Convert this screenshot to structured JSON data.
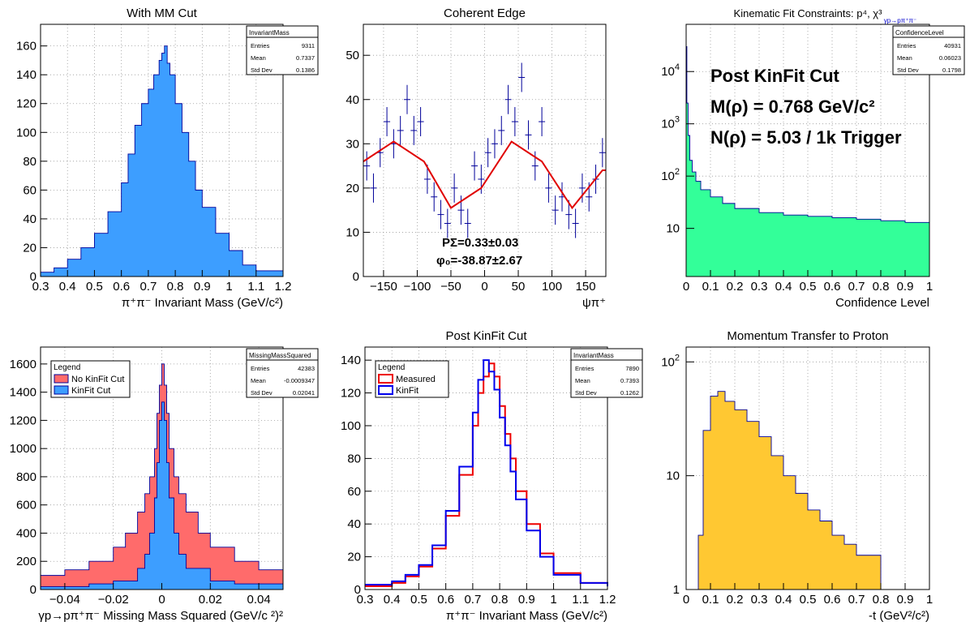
{
  "canvas": {
    "background": "#ffffff"
  },
  "colors": {
    "blue_fill": "#3d9eff",
    "red_fill": "#ff6b6b",
    "green_fill": "#33ff99",
    "yellow_fill": "#ffc832",
    "line_dark": "#000099",
    "fit_red": "#e00000",
    "kin_blue": "#0000ee",
    "meas_red": "#ee0000"
  },
  "chart_data": [
    {
      "id": "p1",
      "type": "bar",
      "title": "With MM Cut",
      "xlabel": "π⁺π⁻ Invariant Mass (GeV/c²)",
      "ylabel": "",
      "xlim": [
        0.3,
        1.2
      ],
      "ylim": [
        0,
        175
      ],
      "xticks": [
        "0.3",
        "0.4",
        "0.5",
        "0.6",
        "0.7",
        "0.8",
        "0.9",
        "1",
        "1.1",
        "1.2"
      ],
      "yticks": [
        "0",
        "20",
        "40",
        "60",
        "80",
        "100",
        "120",
        "140",
        "160"
      ],
      "stats": {
        "name": "InvariantMass",
        "rows": [
          [
            "Entries",
            "9311"
          ],
          [
            "Mean",
            "0.7337"
          ],
          [
            "Std Dev",
            "0.1386"
          ]
        ]
      },
      "series": [
        {
          "color": "#3d9eff",
          "x": [
            0.3,
            0.35,
            0.4,
            0.45,
            0.5,
            0.55,
            0.6,
            0.625,
            0.65,
            0.675,
            0.7,
            0.72,
            0.74,
            0.75,
            0.76,
            0.77,
            0.78,
            0.8,
            0.825,
            0.85,
            0.875,
            0.9,
            0.95,
            1.0,
            1.05,
            1.1,
            1.2
          ],
          "y": [
            3,
            6,
            12,
            20,
            30,
            45,
            65,
            85,
            105,
            120,
            130,
            140,
            150,
            155,
            160,
            148,
            140,
            120,
            100,
            80,
            60,
            48,
            30,
            18,
            8,
            4,
            3
          ]
        }
      ]
    },
    {
      "id": "p2",
      "type": "scatter",
      "title": "Coherent Edge",
      "xlabel": "ψπ⁺",
      "ylabel": "",
      "xlim": [
        -180,
        180
      ],
      "ylim": [
        0,
        57
      ],
      "xticks": [
        "−150",
        "−100",
        "−50",
        "0",
        "50",
        "100",
        "150"
      ],
      "yticks": [
        "0",
        "10",
        "20",
        "30",
        "40",
        "50"
      ],
      "annotations": [
        "PΣ=0.33±0.03",
        "φ₀=-38.87±2.67"
      ],
      "fit": {
        "color": "#e00000",
        "x": [
          -180,
          -135,
          -90,
          -50,
          -5,
          40,
          85,
          130,
          175,
          180
        ],
        "y": [
          26,
          30.5,
          26,
          15.5,
          20,
          30.5,
          26,
          15.5,
          24,
          24
        ]
      },
      "series": [
        {
          "color": "#000099",
          "x": [
            -175,
            -165,
            -155,
            -145,
            -135,
            -125,
            -115,
            -105,
            -95,
            -85,
            -75,
            -65,
            -55,
            -45,
            -35,
            -25,
            -15,
            -5,
            5,
            15,
            25,
            35,
            45,
            55,
            65,
            75,
            85,
            95,
            105,
            115,
            125,
            135,
            145,
            155,
            165,
            175
          ],
          "y": [
            25,
            20,
            28,
            35,
            30,
            33,
            40,
            33,
            35,
            22,
            18,
            14,
            12,
            20,
            15,
            12,
            25,
            22,
            28,
            30,
            33,
            40,
            35,
            45,
            32,
            25,
            35,
            20,
            15,
            18,
            14,
            12,
            20,
            18,
            22,
            28
          ]
        }
      ]
    },
    {
      "id": "p3",
      "type": "bar",
      "title": "Kinematic Fit Constraints: p⁴, χ³",
      "title_sub": "γp→pπ⁺π⁻",
      "xlabel": "Confidence Level",
      "ylabel": "",
      "xlim": [
        0,
        1
      ],
      "ylim": [
        1.2,
        80000
      ],
      "yscale": "log",
      "xticks": [
        "0",
        "0.1",
        "0.2",
        "0.3",
        "0.4",
        "0.5",
        "0.6",
        "0.7",
        "0.8",
        "0.9",
        "1"
      ],
      "ytick_values": [
        10,
        100,
        1000,
        10000
      ],
      "stats": {
        "name": "ConfidenceLevel",
        "rows": [
          [
            "Entries",
            "40931"
          ],
          [
            "Mean",
            "0.06023"
          ],
          [
            "Std Dev",
            "0.1798"
          ]
        ]
      },
      "annotations": [
        "Post KinFit Cut",
        "M(ρ) = 0.768 GeV/c²",
        "N(ρ) = 5.03 / 1k Trigger"
      ],
      "series": [
        {
          "color": "#33ff99",
          "x": [
            0,
            0.003,
            0.008,
            0.015,
            0.025,
            0.04,
            0.06,
            0.1,
            0.15,
            0.2,
            0.3,
            0.4,
            0.5,
            0.6,
            0.7,
            0.8,
            0.9,
            1.0
          ],
          "y": [
            30000,
            2500,
            600,
            200,
            120,
            80,
            55,
            40,
            30,
            24,
            20,
            18,
            17,
            16,
            15,
            14,
            13,
            12
          ]
        }
      ]
    },
    {
      "id": "p4",
      "type": "bar",
      "title": "",
      "xlabel": "γp→pπ⁺π⁻ Missing Mass Squared (GeV/c ²)²",
      "ylabel": "",
      "xlim": [
        -0.05,
        0.05
      ],
      "ylim": [
        0,
        1720
      ],
      "xticks": [
        "−0.04",
        "−0.02",
        "0",
        "0.02",
        "0.04"
      ],
      "yticks": [
        "0",
        "200",
        "400",
        "600",
        "800",
        "1000",
        "1200",
        "1400",
        "1600"
      ],
      "stats": {
        "name": "MissingMassSquared",
        "rows": [
          [
            "Entries",
            "42383"
          ],
          [
            "Mean",
            "-0.0009347"
          ],
          [
            "Std Dev",
            "0.02041"
          ]
        ]
      },
      "legend": {
        "title": "Legend",
        "entries": [
          "No KinFit Cut",
          "KinFit Cut"
        ]
      },
      "series": [
        {
          "name": "No KinFit Cut",
          "color": "#ff6b6b",
          "x": [
            -0.05,
            -0.04,
            -0.03,
            -0.02,
            -0.015,
            -0.01,
            -0.007,
            -0.005,
            -0.003,
            -0.002,
            -0.001,
            0,
            0.001,
            0.002,
            0.003,
            0.005,
            0.007,
            0.01,
            0.015,
            0.02,
            0.03,
            0.04,
            0.05
          ],
          "y": [
            100,
            140,
            200,
            300,
            400,
            550,
            680,
            800,
            1000,
            1250,
            1450,
            1600,
            1450,
            1250,
            1000,
            800,
            680,
            550,
            400,
            300,
            200,
            140,
            100
          ]
        },
        {
          "name": "KinFit Cut",
          "color": "#3d9eff",
          "x": [
            -0.05,
            -0.03,
            -0.02,
            -0.01,
            -0.007,
            -0.005,
            -0.003,
            -0.002,
            -0.001,
            0,
            0.001,
            0.002,
            0.003,
            0.005,
            0.007,
            0.01,
            0.02,
            0.03,
            0.05
          ],
          "y": [
            20,
            40,
            60,
            150,
            250,
            400,
            650,
            900,
            1200,
            1330,
            1200,
            900,
            650,
            400,
            250,
            150,
            60,
            40,
            20
          ]
        }
      ]
    },
    {
      "id": "p5",
      "type": "line",
      "title": "Post KinFit Cut",
      "xlabel": "π⁺π⁻ Invariant Mass (GeV/c²)",
      "ylabel": "",
      "xlim": [
        0.3,
        1.2
      ],
      "ylim": [
        0,
        148
      ],
      "xticks": [
        "0.3",
        "0.4",
        "0.5",
        "0.6",
        "0.7",
        "0.8",
        "0.9",
        "1",
        "1.1",
        "1.2"
      ],
      "yticks": [
        "0",
        "20",
        "40",
        "60",
        "80",
        "100",
        "120",
        "140"
      ],
      "stats": {
        "name": "InvariantMass",
        "rows": [
          [
            "Entries",
            "7890"
          ],
          [
            "Mean",
            "0.7393"
          ],
          [
            "Std Dev",
            "0.1262"
          ]
        ]
      },
      "legend": {
        "title": "Legend",
        "entries": [
          "Measured",
          "KinFit"
        ]
      },
      "series": [
        {
          "name": "Measured",
          "color": "#ee0000",
          "x": [
            0.3,
            0.4,
            0.45,
            0.5,
            0.55,
            0.6,
            0.65,
            0.7,
            0.72,
            0.74,
            0.76,
            0.78,
            0.8,
            0.82,
            0.84,
            0.86,
            0.9,
            0.95,
            1.0,
            1.1,
            1.2
          ],
          "y": [
            2,
            4,
            8,
            14,
            25,
            45,
            70,
            100,
            120,
            130,
            138,
            130,
            112,
            95,
            80,
            60,
            40,
            22,
            10,
            4,
            2
          ]
        },
        {
          "name": "KinFit",
          "color": "#0000ee",
          "x": [
            0.3,
            0.4,
            0.45,
            0.5,
            0.55,
            0.6,
            0.65,
            0.7,
            0.72,
            0.74,
            0.76,
            0.78,
            0.8,
            0.82,
            0.84,
            0.86,
            0.9,
            0.95,
            1.0,
            1.1,
            1.2
          ],
          "y": [
            3,
            5,
            9,
            15,
            27,
            48,
            75,
            108,
            128,
            140,
            133,
            122,
            105,
            88,
            72,
            55,
            36,
            20,
            9,
            4,
            2
          ]
        }
      ]
    },
    {
      "id": "p6",
      "type": "bar",
      "title": "Momentum Transfer to Proton",
      "xlabel": "-t (GeV²/c²)",
      "ylabel": "",
      "xlim": [
        0,
        1
      ],
      "ylim": [
        1,
        135
      ],
      "yscale": "log",
      "xticks": [
        "0",
        "0.1",
        "0.2",
        "0.3",
        "0.4",
        "0.5",
        "0.6",
        "0.7",
        "0.8",
        "0.9",
        "1"
      ],
      "ytick_values": [
        1,
        10,
        100
      ],
      "series": [
        {
          "color": "#ffc832",
          "x": [
            0.05,
            0.07,
            0.1,
            0.13,
            0.16,
            0.2,
            0.25,
            0.3,
            0.35,
            0.4,
            0.45,
            0.5,
            0.55,
            0.6,
            0.65,
            0.7,
            0.75,
            0.8
          ],
          "y": [
            3,
            25,
            50,
            55,
            45,
            38,
            30,
            22,
            15,
            10,
            7,
            5,
            4,
            3,
            2.5,
            2,
            2,
            2
          ]
        }
      ]
    }
  ]
}
